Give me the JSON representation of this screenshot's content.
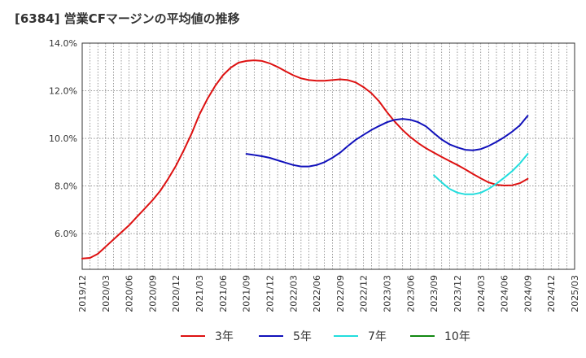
{
  "chart_data": {
    "type": "line",
    "title": "[6384]  営業CFマージンの平均値の推移",
    "xlabel": "",
    "ylabel": "",
    "ylim": [
      4.5,
      14.0
    ],
    "yticks": [
      6.0,
      8.0,
      10.0,
      12.0,
      14.0
    ],
    "ytick_labels": [
      "6.0%",
      "8.0%",
      "10.0%",
      "12.0%",
      "14.0%"
    ],
    "xticks": [
      "2019/12",
      "2020/03",
      "2020/06",
      "2020/09",
      "2020/12",
      "2021/03",
      "2021/06",
      "2021/09",
      "2021/12",
      "2022/03",
      "2022/06",
      "2022/09",
      "2022/12",
      "2023/03",
      "2023/06",
      "2023/09",
      "2023/12",
      "2024/03",
      "2024/06",
      "2024/09",
      "2024/12",
      "2025/03"
    ],
    "grid": true,
    "legend_position": "bottom",
    "series": [
      {
        "name": "3年",
        "color": "#dd1111",
        "x": [
          "2019/12",
          "2020/01",
          "2020/02",
          "2020/03",
          "2020/04",
          "2020/05",
          "2020/06",
          "2020/07",
          "2020/08",
          "2020/09",
          "2020/10",
          "2020/11",
          "2020/12",
          "2021/01",
          "2021/02",
          "2021/03",
          "2021/04",
          "2021/05",
          "2021/06",
          "2021/07",
          "2021/08",
          "2021/09",
          "2021/10",
          "2021/11",
          "2021/12",
          "2022/01",
          "2022/02",
          "2022/03",
          "2022/04",
          "2022/05",
          "2022/06",
          "2022/07",
          "2022/08",
          "2022/09",
          "2022/10",
          "2022/11",
          "2022/12",
          "2023/01",
          "2023/02",
          "2023/03",
          "2023/04",
          "2023/05",
          "2023/06",
          "2023/07",
          "2023/08",
          "2023/09",
          "2023/10",
          "2023/11",
          "2023/12",
          "2024/01",
          "2024/02",
          "2024/03",
          "2024/04",
          "2024/05",
          "2024/06",
          "2024/07",
          "2024/08",
          "2024/09"
        ],
        "values": [
          4.95,
          4.98,
          5.15,
          5.45,
          5.75,
          6.05,
          6.35,
          6.7,
          7.05,
          7.4,
          7.8,
          8.3,
          8.85,
          9.5,
          10.2,
          11.0,
          11.65,
          12.2,
          12.65,
          12.97,
          13.18,
          13.25,
          13.28,
          13.25,
          13.15,
          13.0,
          12.82,
          12.65,
          12.52,
          12.45,
          12.42,
          12.42,
          12.45,
          12.48,
          12.45,
          12.35,
          12.15,
          11.9,
          11.55,
          11.1,
          10.7,
          10.35,
          10.05,
          9.8,
          9.58,
          9.4,
          9.22,
          9.05,
          8.88,
          8.7,
          8.5,
          8.32,
          8.15,
          8.05,
          8.02,
          8.03,
          8.12,
          8.3
        ]
      },
      {
        "name": "5年",
        "color": "#1111bb",
        "x": [
          "2021/09",
          "2021/10",
          "2021/11",
          "2021/12",
          "2022/01",
          "2022/02",
          "2022/03",
          "2022/04",
          "2022/05",
          "2022/06",
          "2022/07",
          "2022/08",
          "2022/09",
          "2022/10",
          "2022/11",
          "2022/12",
          "2023/01",
          "2023/02",
          "2023/03",
          "2023/04",
          "2023/05",
          "2023/06",
          "2023/07",
          "2023/08",
          "2023/09",
          "2023/10",
          "2023/11",
          "2023/12",
          "2024/01",
          "2024/02",
          "2024/03",
          "2024/04",
          "2024/05",
          "2024/06",
          "2024/07",
          "2024/08",
          "2024/09"
        ],
        "values": [
          9.35,
          9.3,
          9.25,
          9.18,
          9.08,
          8.98,
          8.88,
          8.82,
          8.82,
          8.88,
          9.0,
          9.18,
          9.4,
          9.68,
          9.94,
          10.15,
          10.35,
          10.52,
          10.68,
          10.78,
          10.82,
          10.78,
          10.68,
          10.5,
          10.22,
          9.95,
          9.75,
          9.62,
          9.52,
          9.5,
          9.55,
          9.68,
          9.85,
          10.05,
          10.28,
          10.55,
          10.95
        ]
      },
      {
        "name": "7年",
        "color": "#22dddd",
        "x": [
          "2023/09",
          "2023/10",
          "2023/11",
          "2023/12",
          "2024/01",
          "2024/02",
          "2024/03",
          "2024/04",
          "2024/05",
          "2024/06",
          "2024/07",
          "2024/08",
          "2024/09"
        ],
        "values": [
          8.45,
          8.15,
          7.88,
          7.72,
          7.65,
          7.65,
          7.72,
          7.88,
          8.1,
          8.35,
          8.62,
          8.95,
          9.35
        ]
      },
      {
        "name": "10年",
        "color": "#118811",
        "x": [],
        "values": []
      }
    ]
  }
}
